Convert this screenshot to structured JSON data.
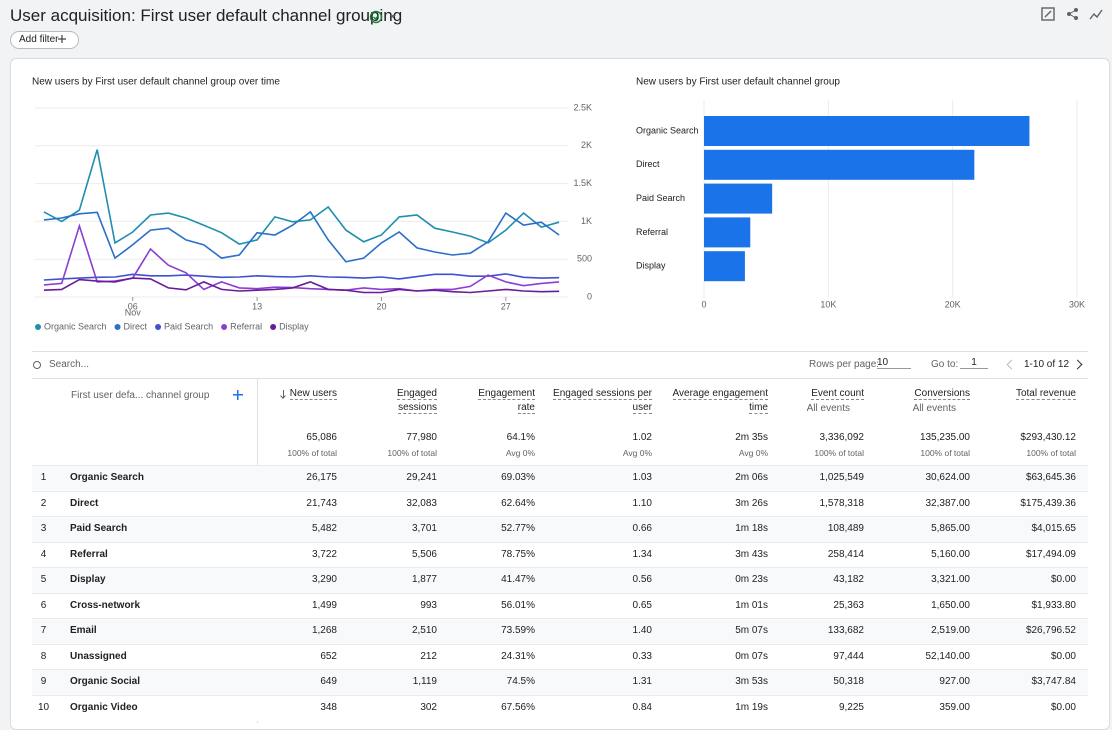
{
  "header": {
    "title": "User acquisition: First user default channel grouping",
    "add_filter": "Add filter"
  },
  "chart_data": [
    {
      "type": "line",
      "title": "New users by First user default channel group over time",
      "x": [
        1,
        2,
        3,
        4,
        5,
        6,
        7,
        8,
        9,
        10,
        11,
        12,
        13,
        14,
        15,
        16,
        17,
        18,
        19,
        20,
        21,
        22,
        23,
        24,
        25,
        26,
        27,
        28,
        29,
        30
      ],
      "xlim": [
        0.5,
        30.5
      ],
      "xticks": [
        {
          "value": 6,
          "label": "06"
        },
        13,
        20,
        27
      ],
      "xtick_month": "Nov",
      "ylim": [
        0,
        2500
      ],
      "yticks": [
        0,
        500,
        {
          "value": 1000,
          "label": "1K"
        },
        {
          "value": 1500,
          "label": "1.5K"
        },
        {
          "value": 2000,
          "label": "2K"
        },
        {
          "value": 2500,
          "label": "2.5K"
        }
      ],
      "grid": true,
      "series": [
        {
          "name": "Organic Search",
          "color": "#1f8fb0",
          "values": [
            1125,
            1000,
            1150,
            1950,
            715,
            860,
            1085,
            1110,
            1045,
            950,
            850,
            700,
            755,
            1060,
            995,
            1020,
            1190,
            885,
            730,
            820,
            1060,
            1085,
            910,
            860,
            805,
            715,
            885,
            1110,
            925,
            990
          ]
        },
        {
          "name": "Direct",
          "color": "#2a6fc9",
          "values": [
            1020,
            1045,
            1100,
            1120,
            515,
            690,
            885,
            910,
            755,
            690,
            515,
            555,
            850,
            820,
            950,
            1125,
            755,
            465,
            515,
            715,
            860,
            650,
            595,
            555,
            580,
            730,
            1110,
            950,
            990,
            820
          ]
        },
        {
          "name": "Paid Search",
          "color": "#3f51d1",
          "values": [
            225,
            240,
            250,
            260,
            265,
            300,
            280,
            280,
            290,
            275,
            260,
            265,
            280,
            270,
            265,
            280,
            265,
            260,
            250,
            265,
            240,
            270,
            300,
            300,
            275,
            275,
            305,
            260,
            250,
            255
          ]
        },
        {
          "name": "Referral",
          "color": "#8a3fd1",
          "values": [
            160,
            180,
            940,
            200,
            210,
            250,
            635,
            420,
            320,
            100,
            200,
            120,
            110,
            130,
            125,
            110,
            100,
            90,
            120,
            100,
            110,
            80,
            100,
            100,
            140,
            290,
            200,
            150,
            180,
            200
          ]
        },
        {
          "name": "Display",
          "color": "#6a1b9a",
          "values": [
            90,
            100,
            230,
            210,
            200,
            250,
            240,
            120,
            95,
            200,
            100,
            80,
            90,
            100,
            120,
            200,
            100,
            90,
            60,
            60,
            100,
            80,
            90,
            70,
            60,
            80,
            100,
            80,
            70,
            75
          ]
        }
      ]
    },
    {
      "type": "hbar",
      "title": "New users by First user default channel group",
      "categories": [
        "Organic Search",
        "Direct",
        "Paid Search",
        "Referral",
        "Display"
      ],
      "values": [
        26175,
        21743,
        5482,
        3722,
        3290
      ],
      "color": "#1a73e8",
      "xlim": [
        0,
        30000
      ],
      "xticks": [
        0,
        {
          "value": 10000,
          "label": "10K"
        },
        {
          "value": 20000,
          "label": "20K"
        },
        {
          "value": 30000,
          "label": "30K"
        }
      ],
      "grid": true
    }
  ],
  "table_controls": {
    "search": "Search...",
    "rows_per_page": "Rows per page:",
    "rows_value": "10",
    "go_to": "Go to:",
    "go_value": "1",
    "range": "1-10 of 12"
  },
  "table": {
    "dimension": "First user defa... channel group",
    "columns": [
      {
        "label": "New users"
      },
      {
        "label": "Engaged sessions"
      },
      {
        "label": "Engagement rate"
      },
      {
        "label": "Engaged sessions per user"
      },
      {
        "label": "Average engagement time"
      },
      {
        "label": "Event count",
        "sub": "All events"
      },
      {
        "label": "Conversions",
        "sub": "All events"
      },
      {
        "label": "Total revenue"
      }
    ],
    "totals": [
      [
        "65,086",
        "100% of total"
      ],
      [
        "77,980",
        "100% of total"
      ],
      [
        "64.1%",
        "Avg 0%"
      ],
      [
        "1.02",
        "Avg 0%"
      ],
      [
        "2m 35s",
        "Avg 0%"
      ],
      [
        "3,336,092",
        "100% of total"
      ],
      [
        "135,235.00",
        "100% of total"
      ],
      [
        "$293,430.12",
        "100% of total"
      ]
    ],
    "rows": [
      [
        "1",
        "Organic Search",
        "26,175",
        "29,241",
        "69.03%",
        "1.03",
        "2m 06s",
        "1,025,549",
        "30,624.00",
        "$63,645.36"
      ],
      [
        "2",
        "Direct",
        "21,743",
        "32,083",
        "62.64%",
        "1.10",
        "3m 26s",
        "1,578,318",
        "32,387.00",
        "$175,439.36"
      ],
      [
        "3",
        "Paid Search",
        "5,482",
        "3,701",
        "52.77%",
        "0.66",
        "1m 18s",
        "108,489",
        "5,865.00",
        "$4,015.65"
      ],
      [
        "4",
        "Referral",
        "3,722",
        "5,506",
        "78.75%",
        "1.34",
        "3m 43s",
        "258,414",
        "5,160.00",
        "$17,494.09"
      ],
      [
        "5",
        "Display",
        "3,290",
        "1,877",
        "41.47%",
        "0.56",
        "0m 23s",
        "43,182",
        "3,321.00",
        "$0.00"
      ],
      [
        "6",
        "Cross-network",
        "1,499",
        "993",
        "56.01%",
        "0.65",
        "1m 01s",
        "25,363",
        "1,650.00",
        "$1,933.80"
      ],
      [
        "7",
        "Email",
        "1,268",
        "2,510",
        "73.59%",
        "1.40",
        "5m 07s",
        "133,682",
        "2,519.00",
        "$26,796.52"
      ],
      [
        "8",
        "Unassigned",
        "652",
        "212",
        "24.31%",
        "0.33",
        "0m 07s",
        "97,444",
        "52,140.00",
        "$0.00"
      ],
      [
        "9",
        "Organic Social",
        "649",
        "1,119",
        "74.5%",
        "1.31",
        "3m 53s",
        "50,318",
        "927.00",
        "$3,747.84"
      ],
      [
        "10",
        "Organic Video",
        "348",
        "302",
        "67.56%",
        "0.84",
        "1m 19s",
        "9,225",
        "359.00",
        "$0.00"
      ]
    ]
  }
}
